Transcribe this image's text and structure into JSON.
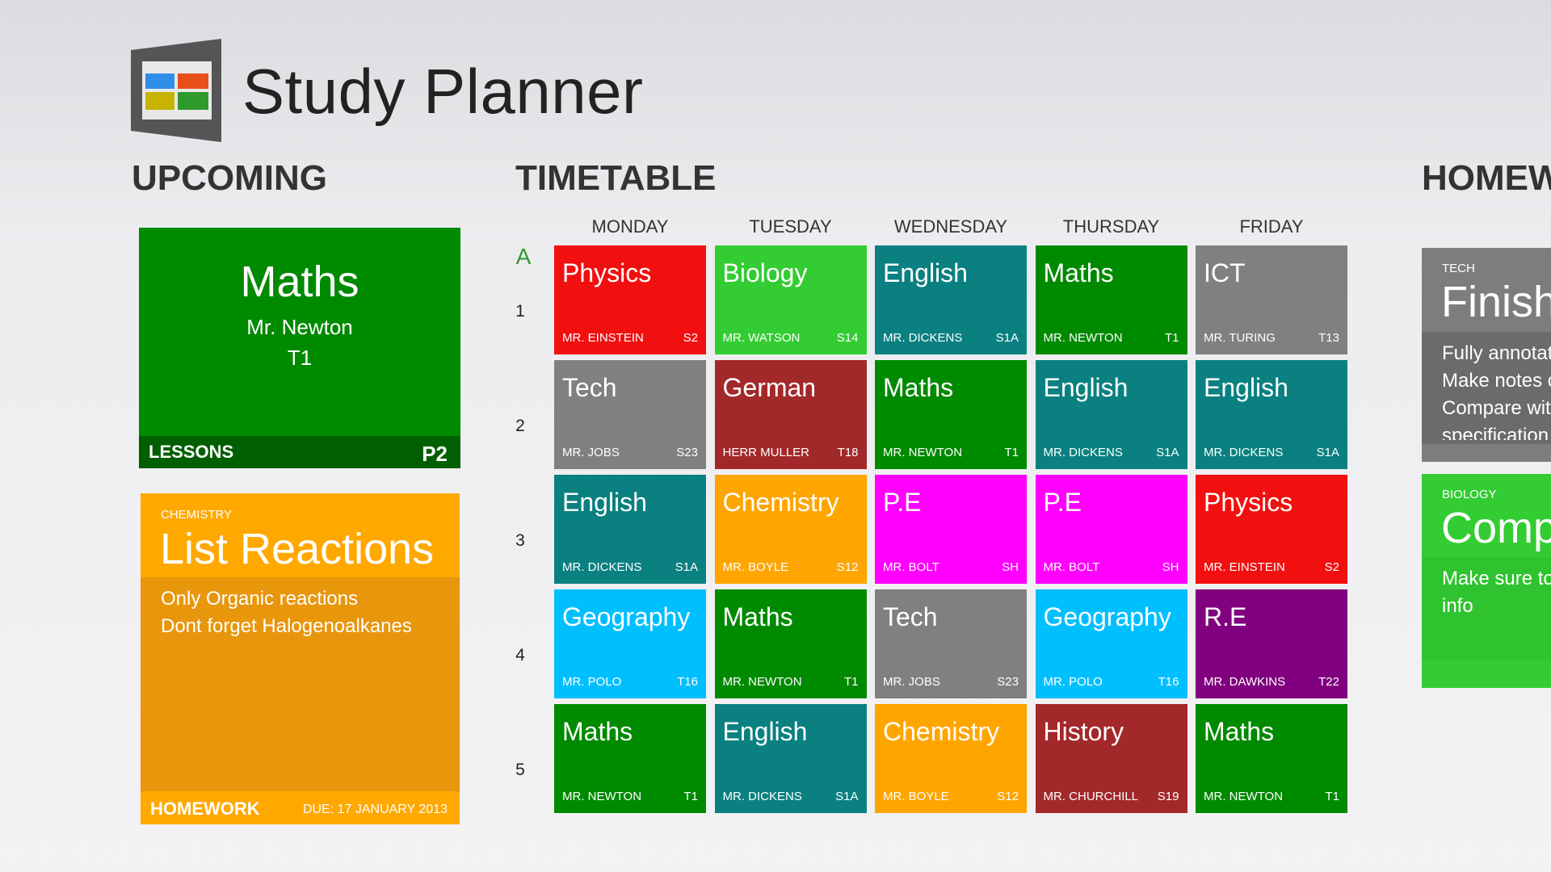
{
  "header": {
    "title": "Study Planner"
  },
  "upcoming": {
    "heading": "UPCOMING",
    "lesson": {
      "subject": "Maths",
      "teacher": "Mr. Newton",
      "room": "T1",
      "label": "LESSONS",
      "period": "P2"
    },
    "homework": {
      "subject": "CHEMISTRY",
      "title": "List Reactions",
      "notes": [
        "Only Organic reactions",
        "Dont forget Halogenoalkanes"
      ],
      "label": "HOMEWORK",
      "due": "DUE: 17 JANUARY 2013"
    }
  },
  "timetable": {
    "heading": "TIMETABLE",
    "week": "A",
    "days": [
      "MONDAY",
      "TUESDAY",
      "WEDNESDAY",
      "THURSDAY",
      "FRIDAY"
    ],
    "periods": [
      "1",
      "2",
      "3",
      "4",
      "5"
    ],
    "rows": [
      [
        {
          "subject": "Physics",
          "teacher": "MR. EINSTEIN",
          "room": "S2",
          "color": "#f20f0f"
        },
        {
          "subject": "Biology",
          "teacher": "MR. WATSON",
          "room": "S14",
          "color": "#33cc33"
        },
        {
          "subject": "English",
          "teacher": "MR. DICKENS",
          "room": "S1A",
          "color": "#0a8080"
        },
        {
          "subject": "Maths",
          "teacher": "MR. NEWTON",
          "room": "T1",
          "color": "#008a00"
        },
        {
          "subject": "ICT",
          "teacher": "MR. TURING",
          "room": "T13",
          "color": "#808080"
        }
      ],
      [
        {
          "subject": "Tech",
          "teacher": "MR. JOBS",
          "room": "S23",
          "color": "#808080"
        },
        {
          "subject": "German",
          "teacher": "HERR MULLER",
          "room": "T18",
          "color": "#a3282a"
        },
        {
          "subject": "Maths",
          "teacher": "MR. NEWTON",
          "room": "T1",
          "color": "#008a00"
        },
        {
          "subject": "English",
          "teacher": "MR. DICKENS",
          "room": "S1A",
          "color": "#0a8080"
        },
        {
          "subject": "English",
          "teacher": "MR. DICKENS",
          "room": "S1A",
          "color": "#0a8080"
        }
      ],
      [
        {
          "subject": "English",
          "teacher": "MR. DICKENS",
          "room": "S1A",
          "color": "#0a8080"
        },
        {
          "subject": "Chemistry",
          "teacher": "MR. BOYLE",
          "room": "S12",
          "color": "#ffa500"
        },
        {
          "subject": "P.E",
          "teacher": "MR. BOLT",
          "room": "SH",
          "color": "#ff00ff"
        },
        {
          "subject": "P.E",
          "teacher": "MR. BOLT",
          "room": "SH",
          "color": "#ff00ff"
        },
        {
          "subject": "Physics",
          "teacher": "MR. EINSTEIN",
          "room": "S2",
          "color": "#f20f0f"
        }
      ],
      [
        {
          "subject": "Geography",
          "teacher": "MR. POLO",
          "room": "T16",
          "color": "#00bfff"
        },
        {
          "subject": "Maths",
          "teacher": "MR. NEWTON",
          "room": "T1",
          "color": "#008a00"
        },
        {
          "subject": "Tech",
          "teacher": "MR. JOBS",
          "room": "S23",
          "color": "#808080"
        },
        {
          "subject": "Geography",
          "teacher": "MR. POLO",
          "room": "T16",
          "color": "#00bfff"
        },
        {
          "subject": "R.E",
          "teacher": "MR. DAWKINS",
          "room": "T22",
          "color": "#800080"
        }
      ],
      [
        {
          "subject": "Maths",
          "teacher": "MR. NEWTON",
          "room": "T1",
          "color": "#008a00"
        },
        {
          "subject": "English",
          "teacher": "MR. DICKENS",
          "room": "S1A",
          "color": "#0a8080"
        },
        {
          "subject": "Chemistry",
          "teacher": "MR. BOYLE",
          "room": "S12",
          "color": "#ffa500"
        },
        {
          "subject": "History",
          "teacher": "MR. CHURCHILL",
          "room": "S19",
          "color": "#a3282a"
        },
        {
          "subject": "Maths",
          "teacher": "MR. NEWTON",
          "room": "T1",
          "color": "#008a00"
        }
      ]
    ]
  },
  "homework": {
    "heading": "HOMEW",
    "cards": [
      {
        "subject": "TECH",
        "title": "Finish",
        "notes": [
          "Fully annotat",
          "Make notes c",
          "Compare wit",
          "specification"
        ]
      },
      {
        "subject": "BIOLOGY",
        "title": "Comp",
        "notes": [
          "Make sure to",
          "info"
        ]
      }
    ]
  }
}
